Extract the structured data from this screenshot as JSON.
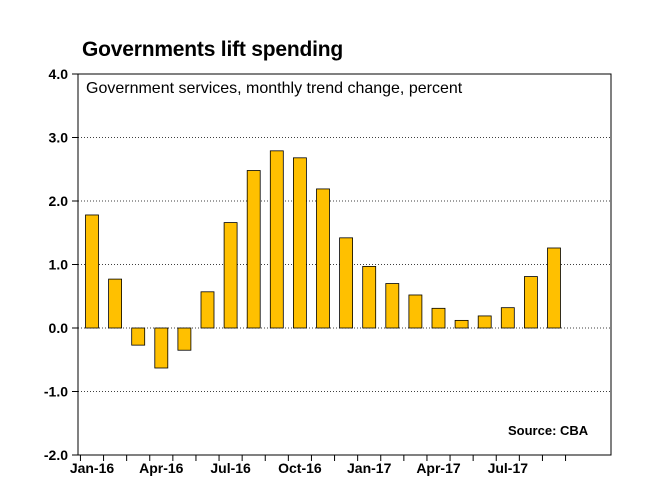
{
  "chart_data": {
    "type": "bar",
    "title": "Governments lift spending",
    "subtitle": "Government services, monthly trend change, percent",
    "source": "Source: CBA",
    "categories": [
      "Jan-16",
      "Feb-16",
      "Mar-16",
      "Apr-16",
      "May-16",
      "Jun-16",
      "Jul-16",
      "Aug-16",
      "Sep-16",
      "Oct-16",
      "Nov-16",
      "Dec-16",
      "Jan-17",
      "Feb-17",
      "Mar-17",
      "Apr-17",
      "May-17",
      "Jun-17",
      "Jul-17",
      "Aug-17",
      "Sep-17"
    ],
    "values": [
      1.78,
      0.77,
      -0.27,
      -0.63,
      -0.35,
      0.57,
      1.66,
      2.48,
      2.79,
      2.68,
      2.19,
      1.42,
      0.97,
      0.7,
      0.52,
      0.31,
      0.12,
      0.19,
      0.32,
      0.81,
      1.26
    ],
    "x_tick_labels": [
      "Jan-16",
      "Apr-16",
      "Jul-16",
      "Oct-16",
      "Jan-17",
      "Apr-17",
      "Jul-17"
    ],
    "y_tick_labels": [
      "4.0",
      "3.0",
      "2.0",
      "1.0",
      "0.0",
      "-1.0",
      "-2.0"
    ],
    "ylim": [
      -2.0,
      4.0
    ],
    "grid": true,
    "bar_color": "#FFC000",
    "bar_edge_color": "#000000"
  }
}
